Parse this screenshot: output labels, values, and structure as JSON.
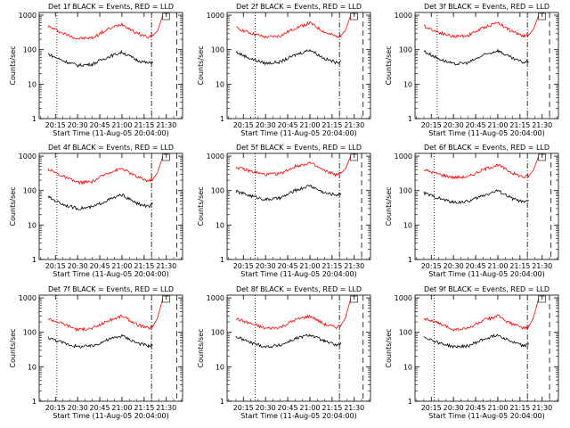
{
  "figure": {
    "ylabel": "Counts/sec",
    "xlabel": "Start Time (11-Aug-05 20:04:00)",
    "x_ticks": [
      "20:15",
      "20:30",
      "20:45",
      "21:00",
      "21:15",
      "21:30"
    ],
    "y_ticks": [
      "1",
      "10",
      "100",
      "1000"
    ],
    "series_colors": {
      "events": "#000000",
      "lld": "#ff0000"
    }
  },
  "chart_data": [
    {
      "type": "line",
      "title": "Det 1f BLACK = Events, RED = LLD",
      "log_y": true,
      "ylim": [
        1,
        1200
      ],
      "xlim": [
        "20:04",
        "21:41"
      ],
      "x": [
        "20:10",
        "20:20",
        "20:30",
        "20:40",
        "20:50",
        "21:00",
        "21:10",
        "21:18",
        "21:21",
        "21:24",
        "21:28"
      ],
      "series": [
        {
          "name": "LLD",
          "color": "#ff0000",
          "values": [
            480,
            300,
            210,
            220,
            380,
            560,
            300,
            230,
            260,
            350,
            1100
          ]
        },
        {
          "name": "Events",
          "color": "#000000",
          "values": [
            75,
            48,
            35,
            38,
            60,
            85,
            50,
            40,
            45,
            null,
            null
          ]
        }
      ],
      "vlines": [
        {
          "t": "20:16",
          "style": "dotted"
        },
        {
          "t": "21:20",
          "style": "dashdot"
        },
        {
          "t": "21:37",
          "style": "dashed"
        }
      ]
    },
    {
      "type": "line",
      "title": "Det 2f BLACK = Events, RED = LLD",
      "log_y": true,
      "ylim": [
        1,
        1200
      ],
      "xlim": [
        "20:04",
        "21:41"
      ],
      "x": [
        "20:10",
        "20:20",
        "20:30",
        "20:40",
        "20:50",
        "21:00",
        "21:10",
        "21:18",
        "21:21",
        "21:24",
        "21:28"
      ],
      "series": [
        {
          "name": "LLD",
          "color": "#ff0000",
          "values": [
            430,
            300,
            230,
            250,
            420,
            600,
            320,
            240,
            260,
            360,
            1100
          ]
        },
        {
          "name": "Events",
          "color": "#000000",
          "values": [
            85,
            55,
            40,
            44,
            70,
            100,
            55,
            42,
            48,
            null,
            null
          ]
        }
      ],
      "vlines": [
        {
          "t": "20:23",
          "style": "dotted"
        },
        {
          "t": "21:20",
          "style": "dashdot"
        },
        {
          "t": "21:36",
          "style": "dashed"
        }
      ]
    },
    {
      "type": "line",
      "title": "Det 3f BLACK = Events, RED = LLD",
      "log_y": true,
      "ylim": [
        1,
        1200
      ],
      "xlim": [
        "20:04",
        "21:41"
      ],
      "x": [
        "20:10",
        "20:20",
        "20:30",
        "20:40",
        "20:50",
        "21:00",
        "21:10",
        "21:18",
        "21:21",
        "21:24",
        "21:28"
      ],
      "series": [
        {
          "name": "LLD",
          "color": "#ff0000",
          "values": [
            480,
            320,
            240,
            260,
            430,
            620,
            330,
            250,
            270,
            380,
            1100
          ]
        },
        {
          "name": "Events",
          "color": "#000000",
          "values": [
            90,
            55,
            38,
            42,
            68,
            95,
            55,
            42,
            48,
            null,
            null
          ]
        }
      ],
      "vlines": [
        {
          "t": "20:19",
          "style": "dotted"
        },
        {
          "t": "21:20",
          "style": "dashdot"
        },
        {
          "t": "21:35",
          "style": "dashed"
        }
      ]
    },
    {
      "type": "line",
      "title": "Det 4f BLACK = Events, RED = LLD",
      "log_y": true,
      "ylim": [
        1,
        1200
      ],
      "xlim": [
        "20:04",
        "21:41"
      ],
      "x": [
        "20:10",
        "20:20",
        "20:30",
        "20:40",
        "20:50",
        "21:00",
        "21:10",
        "21:18",
        "21:21",
        "21:24",
        "21:28"
      ],
      "series": [
        {
          "name": "LLD",
          "color": "#ff0000",
          "values": [
            420,
            260,
            170,
            180,
            320,
            440,
            250,
            190,
            220,
            330,
            1100
          ]
        },
        {
          "name": "Events",
          "color": "#000000",
          "values": [
            65,
            40,
            30,
            33,
            52,
            75,
            42,
            34,
            40,
            null,
            null
          ]
        }
      ],
      "vlines": [
        {
          "t": "20:16",
          "style": "dotted"
        },
        {
          "t": "21:20",
          "style": "dashdot"
        },
        {
          "t": "21:37",
          "style": "dashed"
        }
      ]
    },
    {
      "type": "line",
      "title": "Det 5f BLACK = Events, RED = LLD",
      "log_y": true,
      "ylim": [
        1,
        1200
      ],
      "xlim": [
        "20:04",
        "21:41"
      ],
      "x": [
        "20:10",
        "20:20",
        "20:30",
        "20:40",
        "20:50",
        "21:00",
        "21:10",
        "21:18",
        "21:21",
        "21:24",
        "21:28"
      ],
      "series": [
        {
          "name": "LLD",
          "color": "#ff0000",
          "values": [
            480,
            360,
            290,
            310,
            500,
            640,
            370,
            290,
            320,
            420,
            1100
          ]
        },
        {
          "name": "Events",
          "color": "#000000",
          "values": [
            95,
            70,
            55,
            60,
            100,
            140,
            85,
            75,
            80,
            null,
            null
          ]
        }
      ],
      "vlines": [
        {
          "t": "20:23",
          "style": "dotted"
        },
        {
          "t": "21:20",
          "style": "dashdot"
        },
        {
          "t": "21:35",
          "style": "dashed"
        }
      ]
    },
    {
      "type": "line",
      "title": "Det 6f BLACK = Events, RED = LLD",
      "log_y": true,
      "ylim": [
        1,
        1200
      ],
      "xlim": [
        "20:04",
        "21:41"
      ],
      "x": [
        "20:10",
        "20:20",
        "20:30",
        "20:40",
        "20:50",
        "21:00",
        "21:10",
        "21:18",
        "21:21",
        "21:24",
        "21:28"
      ],
      "series": [
        {
          "name": "LLD",
          "color": "#ff0000",
          "values": [
            400,
            300,
            240,
            250,
            400,
            560,
            320,
            240,
            270,
            380,
            1100
          ]
        },
        {
          "name": "Events",
          "color": "#000000",
          "values": [
            85,
            60,
            45,
            48,
            72,
            100,
            58,
            45,
            50,
            null,
            null
          ]
        }
      ],
      "vlines": [
        {
          "t": "20:17",
          "style": "dotted"
        },
        {
          "t": "21:20",
          "style": "dashdot"
        },
        {
          "t": "21:36",
          "style": "dashed"
        }
      ]
    },
    {
      "type": "line",
      "title": "Det 7f BLACK = Events, RED = LLD",
      "log_y": true,
      "ylim": [
        1,
        1200
      ],
      "xlim": [
        "20:04",
        "21:41"
      ],
      "x": [
        "20:10",
        "20:20",
        "20:30",
        "20:40",
        "20:50",
        "21:00",
        "21:10",
        "21:18",
        "21:21",
        "21:24",
        "21:28"
      ],
      "series": [
        {
          "name": "LLD",
          "color": "#ff0000",
          "values": [
            250,
            180,
            120,
            130,
            210,
            300,
            170,
            130,
            150,
            260,
            1100
          ]
        },
        {
          "name": "Events",
          "color": "#000000",
          "values": [
            70,
            50,
            38,
            40,
            60,
            80,
            50,
            40,
            45,
            null,
            null
          ]
        }
      ],
      "vlines": [
        {
          "t": "20:16",
          "style": "dotted"
        },
        {
          "t": "21:20",
          "style": "dashdot"
        },
        {
          "t": "21:37",
          "style": "dashed"
        }
      ]
    },
    {
      "type": "line",
      "title": "Det 8f BLACK = Events, RED = LLD",
      "log_y": true,
      "ylim": [
        1,
        1200
      ],
      "xlim": [
        "20:04",
        "21:41"
      ],
      "x": [
        "20:10",
        "20:20",
        "20:30",
        "20:40",
        "20:50",
        "21:00",
        "21:10",
        "21:18",
        "21:21",
        "21:24",
        "21:28"
      ],
      "series": [
        {
          "name": "LLD",
          "color": "#ff0000",
          "values": [
            250,
            180,
            130,
            140,
            230,
            300,
            170,
            140,
            160,
            260,
            1100
          ]
        },
        {
          "name": "Events",
          "color": "#000000",
          "values": [
            75,
            50,
            38,
            42,
            65,
            85,
            55,
            42,
            48,
            null,
            null
          ]
        }
      ],
      "vlines": [
        {
          "t": "20:23",
          "style": "dotted"
        },
        {
          "t": "21:20",
          "style": "dashdot"
        },
        {
          "t": "21:36",
          "style": "dashed"
        }
      ]
    },
    {
      "type": "line",
      "title": "Det 9f BLACK = Events, RED = LLD",
      "log_y": true,
      "ylim": [
        1,
        1200
      ],
      "xlim": [
        "20:04",
        "21:41"
      ],
      "x": [
        "20:10",
        "20:20",
        "20:30",
        "20:40",
        "20:50",
        "21:00",
        "21:10",
        "21:18",
        "21:21",
        "21:24",
        "21:28"
      ],
      "series": [
        {
          "name": "LLD",
          "color": "#ff0000",
          "values": [
            260,
            180,
            120,
            130,
            220,
            300,
            170,
            130,
            150,
            260,
            1100
          ]
        },
        {
          "name": "Events",
          "color": "#000000",
          "values": [
            75,
            50,
            38,
            40,
            62,
            85,
            52,
            40,
            46,
            null,
            null
          ]
        }
      ],
      "vlines": [
        {
          "t": "20:17",
          "style": "dotted"
        },
        {
          "t": "21:20",
          "style": "dashdot"
        },
        {
          "t": "21:35",
          "style": "dashed"
        }
      ]
    }
  ]
}
